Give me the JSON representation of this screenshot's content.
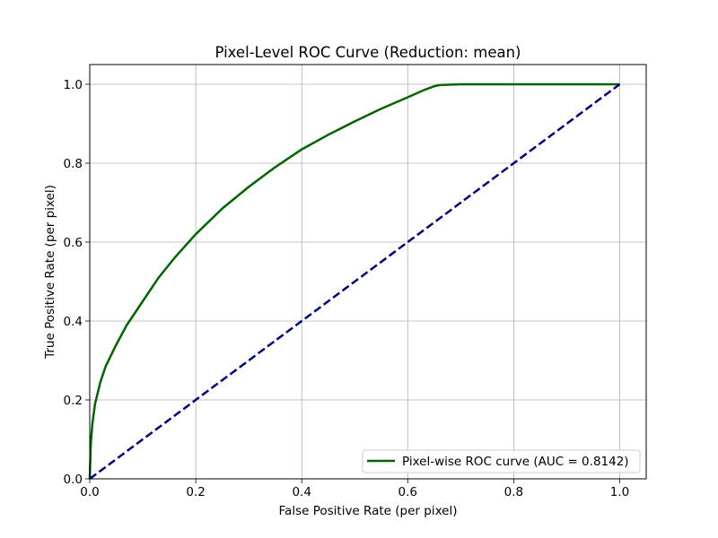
{
  "chart_data": {
    "type": "line",
    "title": "Pixel-Level ROC Curve (Reduction: mean)",
    "xlabel": "False Positive Rate (per pixel)",
    "ylabel": "True Positive Rate (per pixel)",
    "xlim": [
      0.0,
      1.05
    ],
    "ylim": [
      0.0,
      1.05
    ],
    "x_ticks": [
      0.0,
      0.2,
      0.4,
      0.6,
      0.8,
      1.0
    ],
    "y_ticks": [
      0.0,
      0.2,
      0.4,
      0.6,
      0.8,
      1.0
    ],
    "x_tick_labels": [
      "0.0",
      "0.2",
      "0.4",
      "0.6",
      "0.8",
      "1.0"
    ],
    "y_tick_labels": [
      "0.0",
      "0.2",
      "0.4",
      "0.6",
      "0.8",
      "1.0"
    ],
    "grid": true,
    "legend_position": "bottom-right",
    "series": [
      {
        "name": "Pixel-wise ROC curve (AUC = 0.8142)",
        "color": "#006400",
        "style": "solid",
        "x": [
          0.0,
          0.002,
          0.005,
          0.01,
          0.02,
          0.03,
          0.05,
          0.07,
          0.1,
          0.13,
          0.16,
          0.2,
          0.25,
          0.3,
          0.35,
          0.4,
          0.45,
          0.5,
          0.55,
          0.6,
          0.63,
          0.65,
          0.66,
          0.7,
          0.8,
          0.9,
          1.0
        ],
        "y": [
          0.0,
          0.09,
          0.14,
          0.19,
          0.245,
          0.285,
          0.34,
          0.39,
          0.45,
          0.51,
          0.56,
          0.62,
          0.685,
          0.74,
          0.79,
          0.835,
          0.872,
          0.906,
          0.938,
          0.967,
          0.985,
          0.995,
          0.998,
          1.0,
          1.0,
          1.0,
          1.0
        ]
      },
      {
        "name": "",
        "color": "#000080",
        "style": "dashed",
        "x": [
          0.0,
          1.0
        ],
        "y": [
          0.0,
          1.0
        ]
      }
    ]
  }
}
